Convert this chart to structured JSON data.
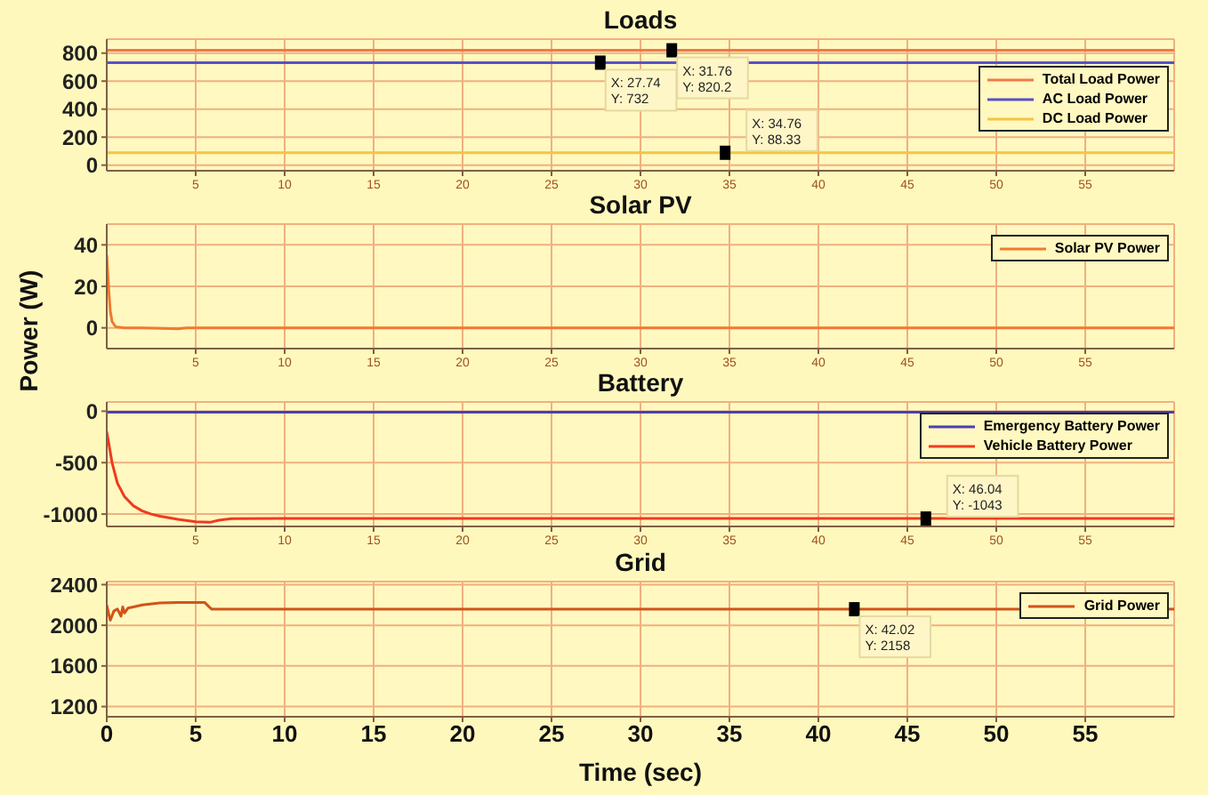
{
  "chart_data": [
    {
      "type": "line",
      "title": "Loads",
      "xlim": [
        0,
        60
      ],
      "xticks": [
        5,
        10,
        15,
        20,
        25,
        30,
        35,
        40,
        45,
        50,
        55
      ],
      "ylim": [
        -40,
        900
      ],
      "yticks": [
        0,
        200,
        400,
        600,
        800
      ],
      "grid": true,
      "legend": "top right",
      "series": [
        {
          "name": "Total Load Power",
          "color": "#f07a4a",
          "x": [
            0,
            10,
            20,
            31.76,
            40,
            50,
            60
          ],
          "values": [
            820.2,
            820.2,
            820.2,
            820.2,
            820.2,
            820.2,
            820.2
          ]
        },
        {
          "name": "AC Load Power",
          "color": "#5a4fc8",
          "x": [
            0,
            10,
            20,
            27.74,
            40,
            50,
            60
          ],
          "values": [
            732,
            732,
            732,
            732,
            732,
            732,
            732
          ]
        },
        {
          "name": "DC Load Power",
          "color": "#f5c542",
          "x": [
            0,
            10,
            20,
            34.76,
            40,
            50,
            60
          ],
          "values": [
            88.33,
            88.33,
            88.33,
            88.33,
            88.33,
            88.33,
            88.33
          ]
        }
      ],
      "annotations": [
        {
          "text": "X: 27.74\nY: 732",
          "x": 27.74,
          "y": 732
        },
        {
          "text": "X: 31.76\nY: 820.2",
          "x": 31.76,
          "y": 820.2
        },
        {
          "text": "X: 34.76\nY: 88.33",
          "x": 34.76,
          "y": 88.33
        }
      ]
    },
    {
      "type": "line",
      "title": "Solar PV",
      "ylabel": "Power (W)",
      "xlim": [
        0,
        60
      ],
      "xticks": [
        5,
        10,
        15,
        20,
        25,
        30,
        35,
        40,
        45,
        50,
        55
      ],
      "ylim": [
        -10,
        50
      ],
      "yticks": [
        0,
        20,
        40
      ],
      "grid": true,
      "legend": "top right",
      "series": [
        {
          "name": "Solar PV Power",
          "color": "#f07a30",
          "x": [
            0,
            0.1,
            0.2,
            0.3,
            0.5,
            1,
            2,
            4,
            4.5,
            10,
            30,
            60
          ],
          "values": [
            35,
            20,
            8,
            3,
            0.5,
            0,
            0,
            -0.5,
            0,
            0,
            0,
            0
          ]
        }
      ]
    },
    {
      "type": "line",
      "title": "Battery",
      "xlim": [
        0,
        60
      ],
      "xticks": [
        5,
        10,
        15,
        20,
        25,
        30,
        35,
        40,
        45,
        50,
        55
      ],
      "ylim": [
        -1120,
        90
      ],
      "yticks": [
        0,
        -500,
        -1000
      ],
      "grid": true,
      "legend": "top right",
      "series": [
        {
          "name": "Emergency Battery Power",
          "color": "#4a3fb0",
          "x": [
            0,
            10,
            20,
            30,
            40,
            50,
            60
          ],
          "values": [
            -10,
            -10,
            -10,
            -10,
            -10,
            -10,
            -10
          ]
        },
        {
          "name": "Vehicle Battery Power",
          "color": "#f03a20",
          "x": [
            0,
            0.3,
            0.6,
            1,
            1.5,
            2,
            2.5,
            3,
            4,
            5,
            5.8,
            6.3,
            7,
            10,
            20,
            30,
            46.04,
            50,
            60
          ],
          "values": [
            -200,
            -500,
            -700,
            -830,
            -920,
            -970,
            -1000,
            -1020,
            -1050,
            -1075,
            -1080,
            -1060,
            -1045,
            -1043,
            -1043,
            -1043,
            -1043,
            -1043,
            -1043
          ]
        }
      ],
      "annotations": [
        {
          "text": "X: 46.04\nY: -1043",
          "x": 46.04,
          "y": -1043
        }
      ]
    },
    {
      "type": "line",
      "title": "Grid",
      "xlabel": "Time (sec)",
      "xlim": [
        0,
        60
      ],
      "xticks": [
        0,
        5,
        10,
        15,
        20,
        25,
        30,
        35,
        40,
        45,
        50,
        55
      ],
      "ylim": [
        1100,
        2430
      ],
      "yticks": [
        1200,
        1600,
        2000,
        2400
      ],
      "grid": true,
      "legend": "top right",
      "series": [
        {
          "name": "Grid Power",
          "color": "#d0541a",
          "x": [
            0,
            0.1,
            0.2,
            0.4,
            0.6,
            0.8,
            0.9,
            1,
            1.2,
            1.5,
            2,
            3,
            4,
            5.5,
            5.7,
            5.9,
            10,
            20,
            30,
            42.02,
            50,
            60
          ],
          "values": [
            2200,
            2120,
            2050,
            2140,
            2160,
            2090,
            2180,
            2120,
            2170,
            2180,
            2200,
            2220,
            2225,
            2225,
            2190,
            2158,
            2158,
            2158,
            2158,
            2158,
            2158,
            2158
          ]
        }
      ],
      "annotations": [
        {
          "text": "X: 42.02\nY: 2158",
          "x": 42.02,
          "y": 2158
        }
      ]
    }
  ]
}
